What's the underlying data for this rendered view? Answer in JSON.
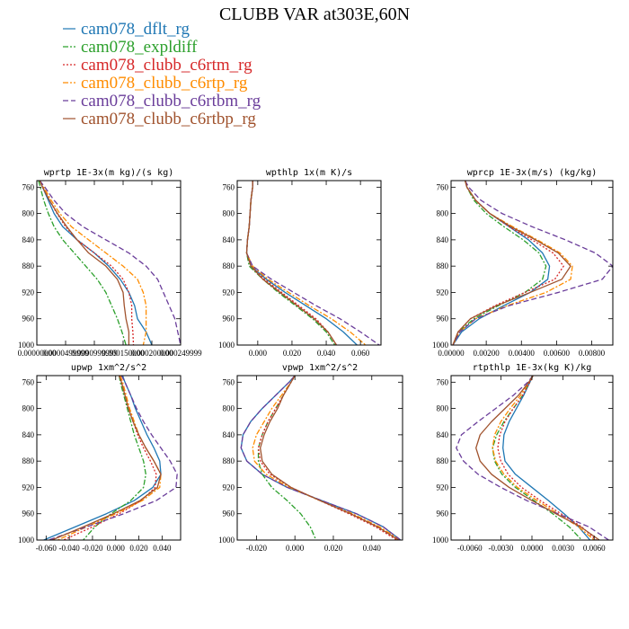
{
  "title": "CLUBB VAR at303E,60N",
  "legend": [
    {
      "label": "cam078_dflt_rg",
      "color": "#1f77b4",
      "dash": "solid"
    },
    {
      "label": "cam078_expldiff",
      "color": "#2ca02c",
      "dash": "dashdot"
    },
    {
      "label": "cam078_clubb_c6rtm_rg",
      "color": "#d62728",
      "dash": "dot"
    },
    {
      "label": "cam078_clubb_c6rtp_rg",
      "color": "#ff8c00",
      "dash": "dashdot"
    },
    {
      "label": "cam078_clubb_c6rtbm_rg",
      "color": "#6a3d9a",
      "dash": "dash"
    },
    {
      "label": "cam078_clubb_c6rtbp_rg",
      "color": "#a0522d",
      "dash": "solid"
    }
  ],
  "chart_data": [
    {
      "type": "line",
      "title": "wprtp  1E-3x(m kg)/(s kg)",
      "xlim": [
        0.0,
        0.00025
      ],
      "ylim": [
        750,
        1000
      ],
      "y_reversed": true,
      "xticks": [
        0.0,
        5e-05,
        0.0001,
        0.00015,
        0.0002,
        0.00025
      ],
      "xtick_labels": [
        "0.00000000",
        "0.0000499999",
        "0.0000999999",
        "0.000150000",
        "0.000200000",
        "0.000249999"
      ],
      "yticks": [
        760,
        800,
        840,
        880,
        920,
        960,
        1000
      ],
      "y": [
        750,
        760,
        780,
        800,
        820,
        840,
        860,
        880,
        900,
        920,
        940,
        960,
        980,
        1000
      ],
      "series": [
        {
          "name": "cam078_dflt_rg",
          "values": [
            5e-06,
            1e-05,
            2e-05,
            3e-05,
            4.5e-05,
            7e-05,
            0.0001,
            0.000125,
            0.000145,
            0.00016,
            0.00017,
            0.000175,
            0.00019,
            0.0002
          ]
        },
        {
          "name": "cam078_expldiff",
          "values": [
            3e-06,
            6e-06,
            1.2e-05,
            2e-05,
            3e-05,
            4.5e-05,
            6.5e-05,
            8.5e-05,
            0.000105,
            0.00012,
            0.00013,
            0.00014,
            0.000148,
            0.000155
          ]
        },
        {
          "name": "cam078_clubb_c6rtm_rg",
          "values": [
            5e-06,
            1e-05,
            2.2e-05,
            3.5e-05,
            5e-05,
            7e-05,
            0.0001,
            0.00013,
            0.00015,
            0.00016,
            0.000165,
            0.000165,
            0.000167,
            0.000168
          ]
        },
        {
          "name": "cam078_clubb_c6rtp_rg",
          "values": [
            5e-06,
            1.2e-05,
            2.5e-05,
            4e-05,
            6e-05,
            9e-05,
            0.00012,
            0.00015,
            0.000175,
            0.000185,
            0.00019,
            0.00019,
            0.00019,
            0.000185
          ]
        },
        {
          "name": "cam078_clubb_c6rtbm_rg",
          "values": [
            5e-06,
            1.4e-05,
            3e-05,
            5e-05,
            8e-05,
            0.00012,
            0.00016,
            0.00019,
            0.00021,
            0.00022,
            0.00023,
            0.00024,
            0.000245,
            0.00025
          ]
        },
        {
          "name": "cam078_clubb_c6rtbp_rg",
          "values": [
            5e-06,
            1e-05,
            2.2e-05,
            3.6e-05,
            5.2e-05,
            7e-05,
            9e-05,
            0.00012,
            0.00014,
            0.00015,
            0.000152,
            0.000155,
            0.00016,
            0.00016
          ]
        }
      ]
    },
    {
      "type": "line",
      "title": "wpthlp  1x(m K)/s",
      "xlim": [
        -0.012,
        0.072
      ],
      "ylim": [
        750,
        1000
      ],
      "y_reversed": true,
      "xticks": [
        0.0,
        0.02,
        0.04,
        0.06
      ],
      "xtick_labels": [
        "0.000",
        "0.020",
        "0.040",
        "0.060"
      ],
      "yticks": [
        760,
        800,
        840,
        880,
        920,
        960,
        1000
      ],
      "y": [
        750,
        760,
        780,
        800,
        820,
        840,
        860,
        880,
        900,
        920,
        940,
        960,
        980,
        1000
      ],
      "series": [
        {
          "name": "cam078_dflt_rg",
          "values": [
            -0.003,
            -0.003,
            -0.004,
            -0.0045,
            -0.005,
            -0.006,
            -0.0065,
            -0.004,
            0.005,
            0.016,
            0.028,
            0.04,
            0.05,
            0.058
          ]
        },
        {
          "name": "cam078_expldiff",
          "values": [
            -0.003,
            -0.003,
            -0.004,
            -0.0045,
            -0.005,
            -0.006,
            -0.0065,
            -0.005,
            0.003,
            0.012,
            0.022,
            0.032,
            0.04,
            0.045
          ]
        },
        {
          "name": "cam078_clubb_c6rtm_rg",
          "values": [
            -0.003,
            -0.003,
            -0.004,
            -0.0045,
            -0.005,
            -0.006,
            -0.0065,
            -0.004,
            0.004,
            0.014,
            0.024,
            0.034,
            0.041,
            0.046
          ]
        },
        {
          "name": "cam078_clubb_c6rtp_rg",
          "values": [
            -0.003,
            -0.003,
            -0.004,
            -0.0045,
            -0.005,
            -0.006,
            -0.0065,
            -0.003,
            0.006,
            0.018,
            0.03,
            0.043,
            0.054,
            0.063
          ]
        },
        {
          "name": "cam078_clubb_c6rtbm_rg",
          "values": [
            -0.003,
            -0.003,
            -0.004,
            -0.0045,
            -0.005,
            -0.006,
            -0.0065,
            -0.003,
            0.008,
            0.021,
            0.034,
            0.048,
            0.06,
            0.071
          ]
        },
        {
          "name": "cam078_clubb_c6rtbp_rg",
          "values": [
            -0.003,
            -0.003,
            -0.004,
            -0.0045,
            -0.005,
            -0.006,
            -0.0065,
            -0.004,
            0.003,
            0.013,
            0.023,
            0.033,
            0.041,
            0.046
          ]
        }
      ]
    },
    {
      "type": "line",
      "title": "wprcp  1E-3x(m/s) (kg/kg)",
      "xlim": [
        0.0,
        0.0092
      ],
      "ylim": [
        750,
        1000
      ],
      "y_reversed": true,
      "xticks": [
        0.0,
        0.002,
        0.004,
        0.006,
        0.008
      ],
      "xtick_labels": [
        "0.00000",
        "0.00200",
        "0.00400",
        "0.00600",
        "0.00800"
      ],
      "yticks": [
        760,
        800,
        840,
        880,
        920,
        960,
        1000
      ],
      "y": [
        750,
        760,
        780,
        800,
        820,
        840,
        860,
        880,
        900,
        920,
        940,
        960,
        980,
        1000
      ],
      "series": [
        {
          "name": "cam078_dflt_rg",
          "values": [
            0.0008,
            0.0009,
            0.0014,
            0.0022,
            0.0033,
            0.0044,
            0.0052,
            0.0056,
            0.0055,
            0.0045,
            0.003,
            0.0016,
            0.0006,
            0.0001
          ]
        },
        {
          "name": "cam078_expldiff",
          "values": [
            0.0008,
            0.0009,
            0.0013,
            0.002,
            0.003,
            0.0041,
            0.005,
            0.0054,
            0.0052,
            0.0042,
            0.0027,
            0.0013,
            0.0004,
            0.0001
          ]
        },
        {
          "name": "cam078_clubb_c6rtm_rg",
          "values": [
            0.0008,
            0.0009,
            0.0014,
            0.0022,
            0.0033,
            0.0046,
            0.0058,
            0.0064,
            0.0059,
            0.0042,
            0.0025,
            0.0011,
            0.0004,
            0.0001
          ]
        },
        {
          "name": "cam078_clubb_c6rtp_rg",
          "values": [
            0.0008,
            0.0009,
            0.0014,
            0.0022,
            0.0035,
            0.0049,
            0.0062,
            0.0069,
            0.0068,
            0.0054,
            0.0032,
            0.0014,
            0.0005,
            0.0001
          ]
        },
        {
          "name": "cam078_clubb_c6rtbm_rg",
          "values": [
            0.0008,
            0.001,
            0.0017,
            0.0029,
            0.0046,
            0.0065,
            0.0082,
            0.0092,
            0.0086,
            0.0061,
            0.0033,
            0.0014,
            0.0005,
            0.0001
          ]
        },
        {
          "name": "cam078_clubb_c6rtbp_rg",
          "values": [
            0.0008,
            0.0009,
            0.0014,
            0.0022,
            0.0034,
            0.0048,
            0.0061,
            0.0068,
            0.0063,
            0.0045,
            0.0026,
            0.0011,
            0.0004,
            0.0001
          ]
        }
      ]
    },
    {
      "type": "line",
      "title": "upwp  1xm^2/s^2",
      "xlim": [
        -0.068,
        0.056
      ],
      "ylim": [
        750,
        1000
      ],
      "y_reversed": true,
      "xticks": [
        -0.06,
        -0.04,
        -0.02,
        0.0,
        0.02,
        0.04
      ],
      "xtick_labels": [
        "-0.060",
        "-0.040",
        "-0.020",
        "0.000",
        "0.020",
        "0.040"
      ],
      "yticks": [
        760,
        800,
        840,
        880,
        920,
        960,
        1000
      ],
      "y": [
        750,
        760,
        780,
        800,
        820,
        840,
        860,
        880,
        900,
        920,
        940,
        960,
        980,
        1000
      ],
      "series": [
        {
          "name": "cam078_dflt_rg",
          "values": [
            0.006,
            0.008,
            0.013,
            0.017,
            0.022,
            0.027,
            0.033,
            0.038,
            0.039,
            0.032,
            0.016,
            -0.008,
            -0.035,
            -0.062
          ]
        },
        {
          "name": "cam078_expldiff",
          "values": [
            0.003,
            0.004,
            0.007,
            0.01,
            0.013,
            0.016,
            0.02,
            0.024,
            0.026,
            0.024,
            0.013,
            -0.004,
            -0.018,
            -0.028
          ]
        },
        {
          "name": "cam078_clubb_c6rtm_rg",
          "values": [
            0.003,
            0.005,
            0.008,
            0.011,
            0.015,
            0.019,
            0.024,
            0.03,
            0.035,
            0.034,
            0.022,
            0.003,
            -0.02,
            -0.045
          ]
        },
        {
          "name": "cam078_clubb_c6rtp_rg",
          "values": [
            0.004,
            0.006,
            0.009,
            0.012,
            0.016,
            0.02,
            0.026,
            0.033,
            0.039,
            0.038,
            0.023,
            0.0,
            -0.025,
            -0.05
          ]
        },
        {
          "name": "cam078_clubb_c6rtbm_rg",
          "values": [
            0.005,
            0.008,
            0.013,
            0.018,
            0.024,
            0.031,
            0.039,
            0.047,
            0.053,
            0.052,
            0.035,
            0.007,
            -0.025,
            -0.058
          ]
        },
        {
          "name": "cam078_clubb_c6rtbp_rg",
          "values": [
            0.003,
            0.005,
            0.008,
            0.011,
            0.015,
            0.02,
            0.026,
            0.033,
            0.039,
            0.036,
            0.021,
            -0.002,
            -0.028,
            -0.055
          ]
        }
      ]
    },
    {
      "type": "line",
      "title": "vpwp  1xm^2/s^2",
      "xlim": [
        -0.03,
        0.056
      ],
      "ylim": [
        750,
        1000
      ],
      "y_reversed": true,
      "xticks": [
        -0.02,
        0.0,
        0.02,
        0.04
      ],
      "xtick_labels": [
        "-0.020",
        "0.000",
        "0.020",
        "0.040"
      ],
      "yticks": [
        760,
        800,
        840,
        880,
        920,
        960,
        1000
      ],
      "y": [
        750,
        760,
        780,
        800,
        820,
        840,
        860,
        880,
        900,
        920,
        940,
        960,
        980,
        1000
      ],
      "series": [
        {
          "name": "cam078_dflt_rg",
          "values": [
            0.0,
            -0.003,
            -0.01,
            -0.017,
            -0.023,
            -0.027,
            -0.028,
            -0.025,
            -0.017,
            -0.004,
            0.014,
            0.032,
            0.046,
            0.055
          ]
        },
        {
          "name": "cam078_expldiff",
          "values": [
            0.0,
            -0.002,
            -0.006,
            -0.01,
            -0.014,
            -0.017,
            -0.019,
            -0.019,
            -0.017,
            -0.012,
            -0.004,
            0.003,
            0.008,
            0.011
          ]
        },
        {
          "name": "cam078_clubb_c6rtm_rg",
          "values": [
            0.0,
            -0.002,
            -0.006,
            -0.01,
            -0.014,
            -0.017,
            -0.019,
            -0.018,
            -0.013,
            -0.002,
            0.013,
            0.028,
            0.042,
            0.053
          ]
        },
        {
          "name": "cam078_clubb_c6rtp_rg",
          "values": [
            0.0,
            -0.002,
            -0.007,
            -0.012,
            -0.016,
            -0.02,
            -0.022,
            -0.021,
            -0.015,
            -0.003,
            0.013,
            0.03,
            0.044,
            0.055
          ]
        },
        {
          "name": "cam078_clubb_c6rtbm_rg",
          "values": [
            0.0,
            -0.003,
            -0.01,
            -0.017,
            -0.023,
            -0.027,
            -0.028,
            -0.025,
            -0.017,
            -0.004,
            0.014,
            0.032,
            0.046,
            0.055
          ]
        },
        {
          "name": "cam078_clubb_c6rtbp_rg",
          "values": [
            0.0,
            -0.002,
            -0.006,
            -0.009,
            -0.013,
            -0.016,
            -0.018,
            -0.017,
            -0.012,
            -0.002,
            0.013,
            0.029,
            0.043,
            0.054
          ]
        }
      ]
    },
    {
      "type": "line",
      "title": "rtpthlp  1E-3x(kg K)/kg",
      "xlim": [
        -0.0078,
        0.0078
      ],
      "ylim": [
        750,
        1000
      ],
      "y_reversed": true,
      "xticks": [
        -0.006,
        -0.003,
        0.0,
        0.003,
        0.006
      ],
      "xtick_labels": [
        "-0.0060",
        "-0.0030",
        "0.0000",
        "0.0030",
        "0.0060"
      ],
      "yticks": [
        760,
        800,
        840,
        880,
        920,
        960,
        1000
      ],
      "y": [
        750,
        760,
        780,
        800,
        820,
        840,
        860,
        880,
        900,
        920,
        940,
        960,
        980,
        1000
      ],
      "series": [
        {
          "name": "cam078_dflt_rg",
          "values": [
            0.0001,
            -0.0002,
            -0.0008,
            -0.0015,
            -0.0022,
            -0.0027,
            -0.0028,
            -0.0026,
            -0.0016,
            0.0,
            0.0016,
            0.0031,
            0.0045,
            0.0056
          ]
        },
        {
          "name": "cam078_expldiff",
          "values": [
            0.0001,
            -0.0002,
            -0.0009,
            -0.0018,
            -0.0027,
            -0.0034,
            -0.0038,
            -0.0036,
            -0.0029,
            -0.0016,
            0.0002,
            0.002,
            0.0036,
            0.0048
          ]
        },
        {
          "name": "cam078_clubb_c6rtm_rg",
          "values": [
            0.0001,
            -0.0002,
            -0.0009,
            -0.0018,
            -0.0026,
            -0.0031,
            -0.0033,
            -0.003,
            -0.0023,
            -0.001,
            0.0008,
            0.0028,
            0.0048,
            0.0062
          ]
        },
        {
          "name": "cam078_clubb_c6rtp_rg",
          "values": [
            0.0001,
            -0.0003,
            -0.0011,
            -0.0021,
            -0.003,
            -0.0036,
            -0.0038,
            -0.0035,
            -0.0027,
            -0.0014,
            0.0005,
            0.0025,
            0.0045,
            0.006
          ]
        },
        {
          "name": "cam078_clubb_c6rtbm_rg",
          "values": [
            0.0001,
            -0.0004,
            -0.0018,
            -0.0035,
            -0.0052,
            -0.0068,
            -0.0073,
            -0.0066,
            -0.0052,
            -0.003,
            -0.0005,
            0.0025,
            0.0055,
            0.0074
          ]
        },
        {
          "name": "cam078_clubb_c6rtbp_rg",
          "values": [
            0.0001,
            -0.0003,
            -0.0013,
            -0.0026,
            -0.0039,
            -0.005,
            -0.0054,
            -0.005,
            -0.0039,
            -0.0022,
            0.0,
            0.0023,
            0.0047,
            0.0065
          ]
        }
      ]
    }
  ]
}
